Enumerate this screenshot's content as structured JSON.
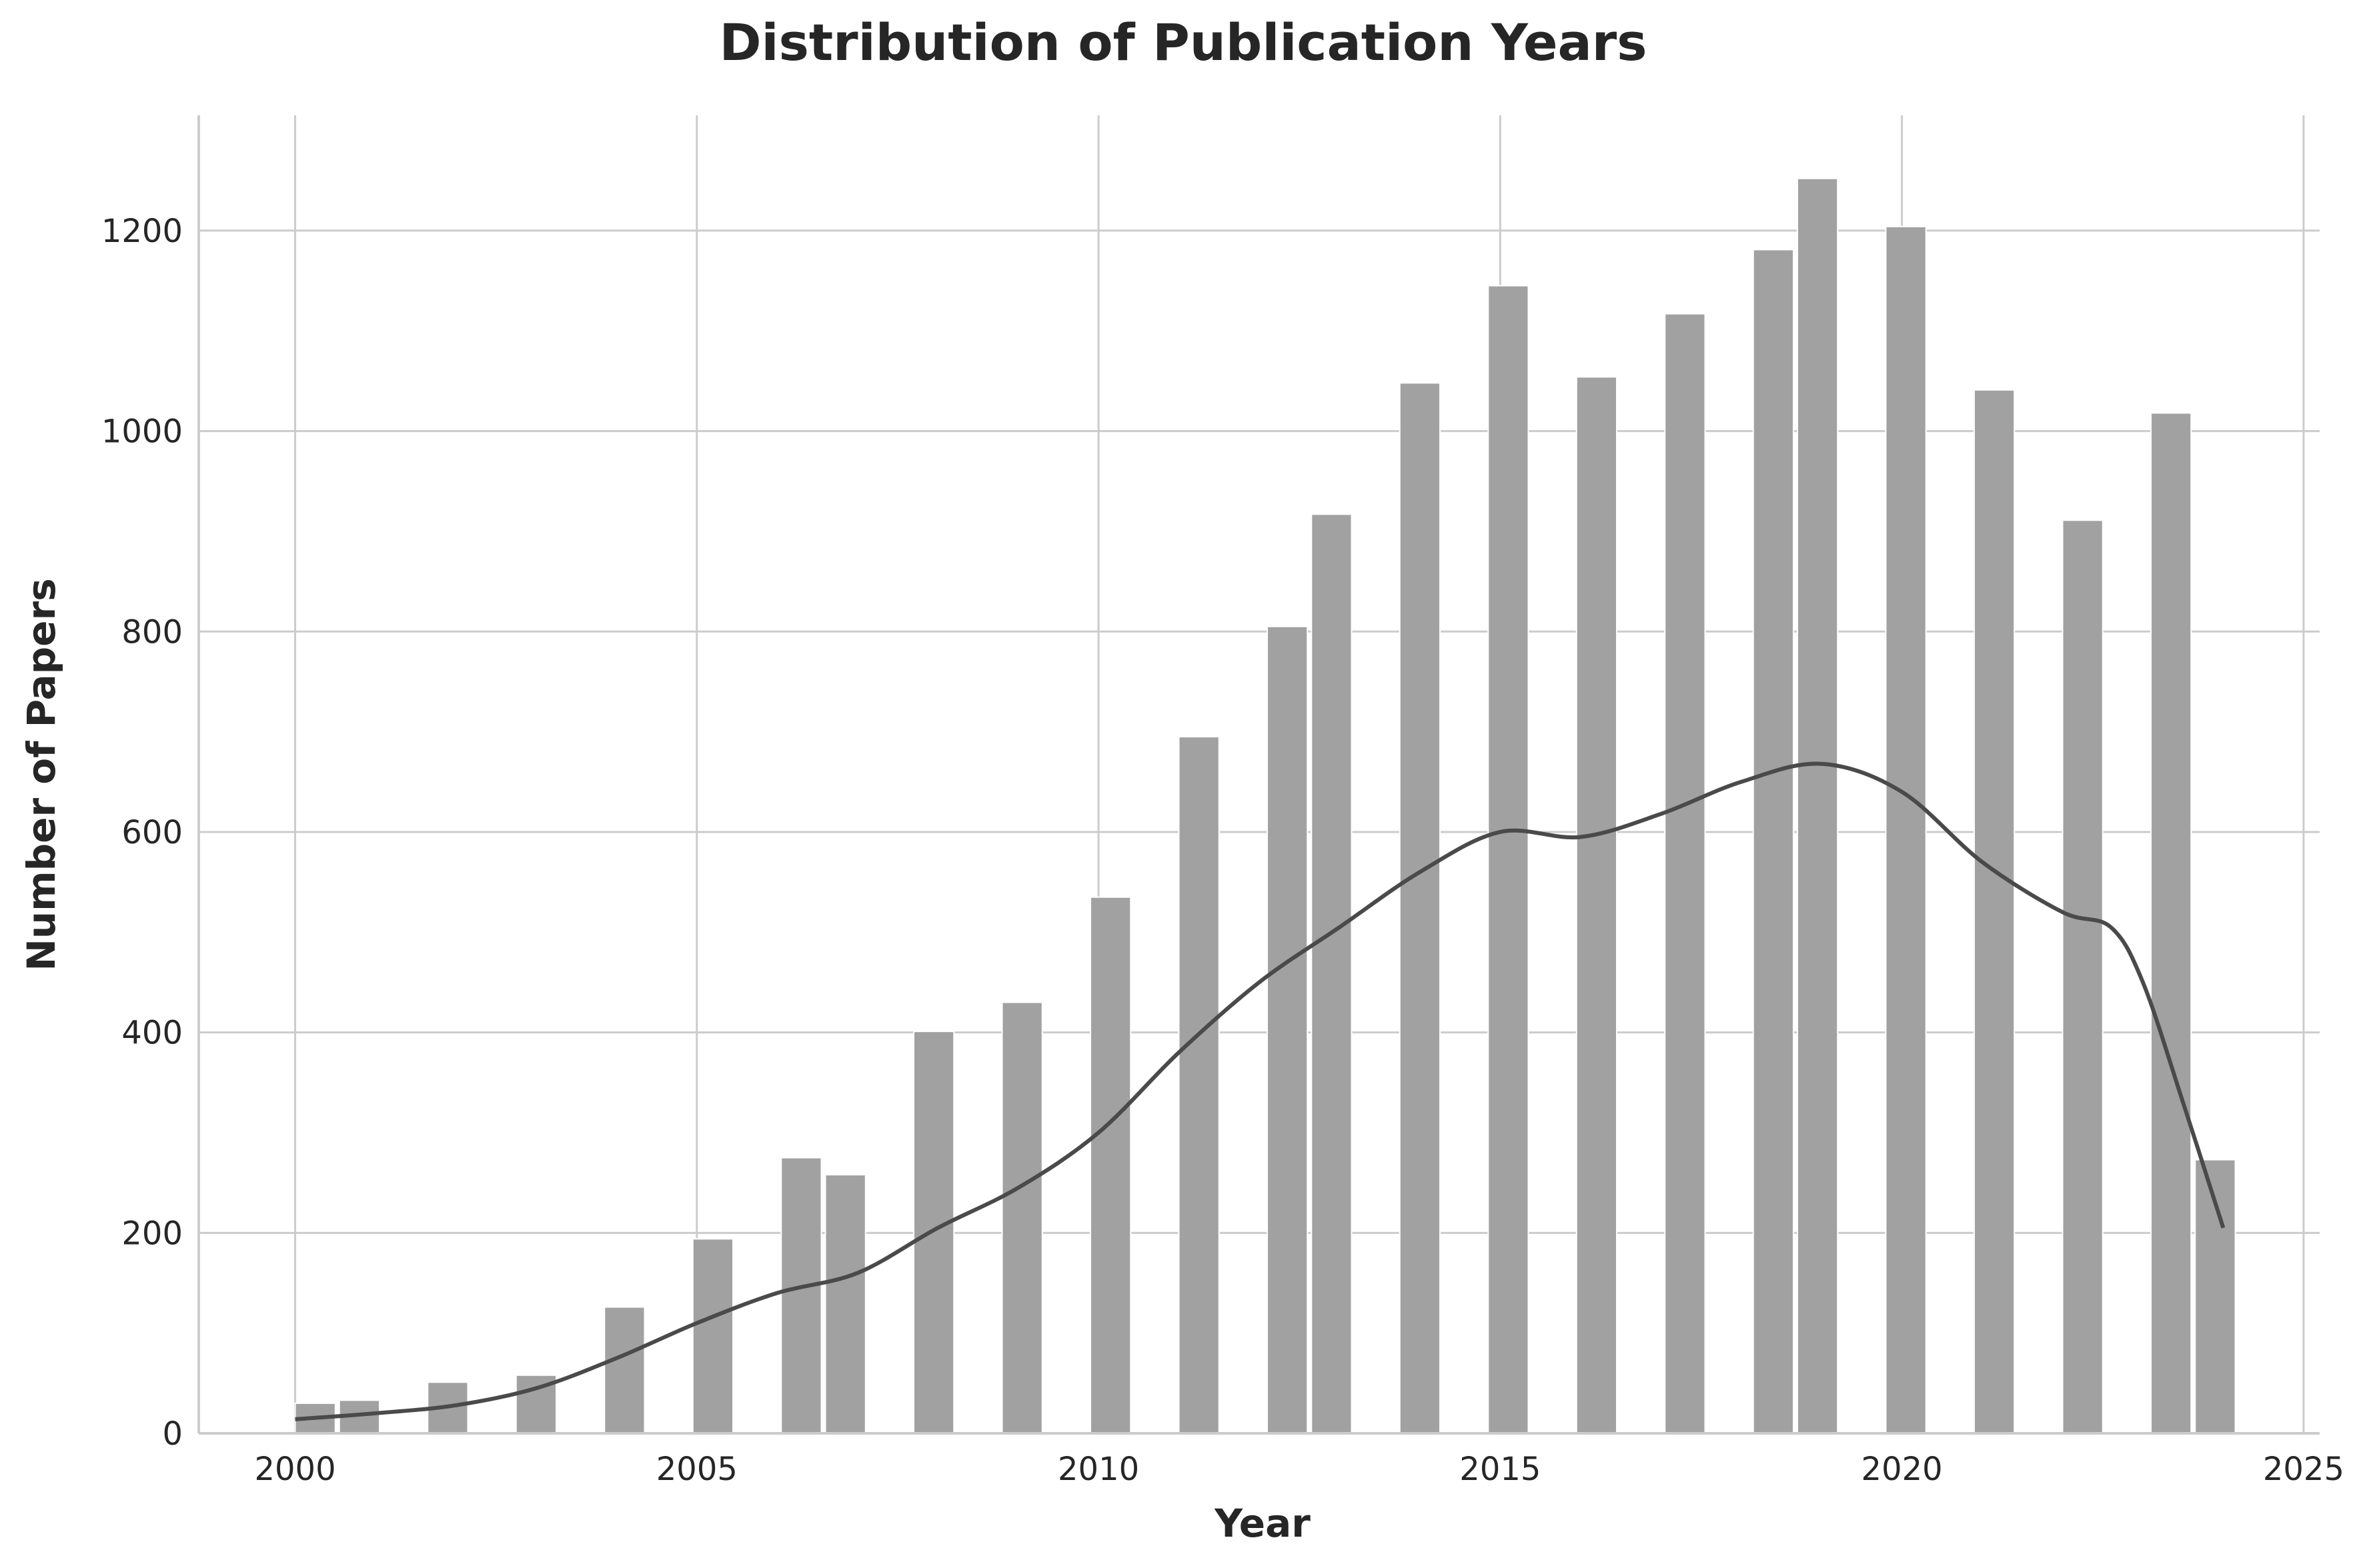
{
  "chart_data": {
    "type": "bar",
    "title": "Distribution of Publication Years",
    "xlabel": "Year",
    "ylabel": "Number of Papers",
    "xlim": [
      1998.8,
      2025.2
    ],
    "ylim": [
      0,
      1315
    ],
    "xticks": [
      2000,
      2005,
      2010,
      2015,
      2020,
      2025
    ],
    "yticks": [
      0,
      200,
      400,
      600,
      800,
      1000,
      1200
    ],
    "grid": true,
    "legend": "none",
    "bar_color": "#a0a1a0",
    "line_color": "#4a4a4a",
    "bin_width": 0.5,
    "histogram": {
      "bin_starts": [
        2000.0,
        2000.55,
        2001.65,
        2002.75,
        2003.85,
        2004.95,
        2006.05,
        2006.6,
        2007.7,
        2008.8,
        2009.9,
        2011.0,
        2012.1,
        2012.65,
        2013.75,
        2014.85,
        2015.95,
        2017.05,
        2018.15,
        2018.7,
        2019.8,
        2020.9,
        2022.0,
        2023.1,
        2023.65
      ],
      "counts": [
        30,
        33,
        51,
        58,
        126,
        194,
        275,
        258,
        401,
        430,
        535,
        695,
        805,
        917,
        1048,
        1145,
        1054,
        1117,
        1181,
        1252,
        1204,
        1041,
        911,
        1018,
        273
      ]
    },
    "kde": {
      "x": [
        2000,
        2001,
        2002,
        2003,
        2004,
        2005,
        2006,
        2007,
        2008,
        2009,
        2010,
        2011,
        2012,
        2013,
        2014,
        2015,
        2016,
        2017,
        2018,
        2019,
        2020,
        2021,
        2022,
        2022.6,
        2023,
        2023.5,
        2024
      ],
      "y": [
        14,
        20,
        28,
        45,
        75,
        110,
        140,
        160,
        205,
        245,
        300,
        380,
        450,
        505,
        560,
        600,
        595,
        618,
        650,
        668,
        640,
        570,
        520,
        505,
        450,
        330,
        205
      ]
    }
  }
}
